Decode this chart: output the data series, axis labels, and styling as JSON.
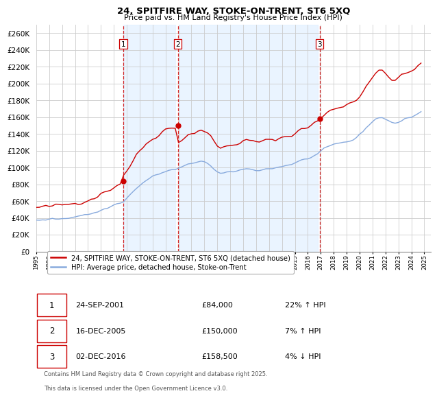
{
  "title": "24, SPITFIRE WAY, STOKE-ON-TRENT, ST6 5XQ",
  "subtitle": "Price paid vs. HM Land Registry's House Price Index (HPI)",
  "ylim": [
    0,
    270000
  ],
  "yticks": [
    0,
    20000,
    40000,
    60000,
    80000,
    100000,
    120000,
    140000,
    160000,
    180000,
    200000,
    220000,
    240000,
    260000
  ],
  "xlim_start": 1995.0,
  "xlim_end": 2025.5,
  "sale_color": "#cc0000",
  "hpi_color": "#88aadd",
  "shade_color": "#ddeeff",
  "vline_color": "#cc0000",
  "grid_color": "#cccccc",
  "bg_color": "#ffffff",
  "legend_label_sale": "24, SPITFIRE WAY, STOKE-ON-TRENT, ST6 5XQ (detached house)",
  "legend_label_hpi": "HPI: Average price, detached house, Stoke-on-Trent",
  "sale_dates": [
    2001.73,
    2005.96,
    2016.92
  ],
  "sale_prices": [
    84000,
    150000,
    158500
  ],
  "sale_labels": [
    "1",
    "2",
    "3"
  ],
  "footnote1": "Contains HM Land Registry data © Crown copyright and database right 2025.",
  "footnote2": "This data is licensed under the Open Government Licence v3.0.",
  "table_rows": [
    {
      "label": "1",
      "date": "24-SEP-2001",
      "price": "£84,000",
      "hpi": "22% ↑ HPI"
    },
    {
      "label": "2",
      "date": "16-DEC-2005",
      "price": "£150,000",
      "hpi": "7% ↑ HPI"
    },
    {
      "label": "3",
      "date": "02-DEC-2016",
      "price": "£158,500",
      "hpi": "4% ↓ HPI"
    }
  ],
  "hpi_index": [
    52.0,
    52.4,
    52.7,
    53.1,
    53.5,
    54.0,
    54.5,
    55.0,
    55.6,
    56.3,
    57.1,
    57.9,
    58.8,
    59.7,
    60.5,
    61.3,
    62.2,
    63.5,
    65.0,
    66.8,
    68.8,
    70.9,
    73.1,
    75.4,
    77.7,
    80.0,
    82.3,
    84.6,
    89.5,
    94.8,
    100.3,
    105.7,
    110.8,
    115.2,
    119.0,
    122.4,
    125.3,
    128.0,
    130.4,
    132.5,
    134.3,
    135.5,
    136.5,
    137.3,
    139.1,
    141.0,
    143.0,
    145.2,
    147.5,
    149.8,
    151.7,
    152.8,
    151.0,
    147.5,
    142.8,
    137.0,
    132.8,
    130.0,
    130.5,
    131.2,
    132.8,
    134.5,
    136.0,
    137.0,
    137.8,
    138.2,
    137.9,
    137.5,
    137.0,
    137.4,
    137.8,
    138.3,
    138.9,
    139.8,
    140.7,
    141.7,
    143.0,
    144.3,
    145.5,
    146.8,
    148.5,
    150.3,
    152.3,
    154.4,
    156.5,
    158.7,
    160.8,
    163.0,
    166.8,
    170.0,
    173.5,
    176.2,
    178.8,
    180.6,
    182.0,
    183.2,
    184.5,
    185.8,
    187.5,
    190.5,
    195.8,
    201.5,
    208.2,
    213.8,
    218.5,
    222.0,
    224.5,
    225.8,
    222.8,
    219.5,
    217.0,
    215.5,
    216.8,
    219.0,
    221.5,
    224.0,
    226.5,
    229.0,
    231.5,
    234.0
  ],
  "hpi_data_x": [
    1995.0,
    1995.25,
    1995.5,
    1995.75,
    1996.0,
    1996.25,
    1996.5,
    1996.75,
    1997.0,
    1997.25,
    1997.5,
    1997.75,
    1998.0,
    1998.25,
    1998.5,
    1998.75,
    1999.0,
    1999.25,
    1999.5,
    1999.75,
    2000.0,
    2000.25,
    2000.5,
    2000.75,
    2001.0,
    2001.25,
    2001.5,
    2001.75,
    2002.0,
    2002.25,
    2002.5,
    2002.75,
    2003.0,
    2003.25,
    2003.5,
    2003.75,
    2004.0,
    2004.25,
    2004.5,
    2004.75,
    2005.0,
    2005.25,
    2005.5,
    2005.75,
    2006.0,
    2006.25,
    2006.5,
    2006.75,
    2007.0,
    2007.25,
    2007.5,
    2007.75,
    2008.0,
    2008.25,
    2008.5,
    2008.75,
    2009.0,
    2009.25,
    2009.5,
    2009.75,
    2010.0,
    2010.25,
    2010.5,
    2010.75,
    2011.0,
    2011.25,
    2011.5,
    2011.75,
    2012.0,
    2012.25,
    2012.5,
    2012.75,
    2013.0,
    2013.25,
    2013.5,
    2013.75,
    2014.0,
    2014.25,
    2014.5,
    2014.75,
    2015.0,
    2015.25,
    2015.5,
    2015.75,
    2016.0,
    2016.25,
    2016.5,
    2016.75,
    2017.0,
    2017.25,
    2017.5,
    2017.75,
    2018.0,
    2018.25,
    2018.5,
    2018.75,
    2019.0,
    2019.25,
    2019.5,
    2019.75,
    2020.0,
    2020.25,
    2020.5,
    2020.75,
    2021.0,
    2021.25,
    2021.5,
    2021.75,
    2022.0,
    2022.25,
    2022.5,
    2022.75,
    2023.0,
    2023.25,
    2023.5,
    2023.75,
    2024.0,
    2024.25,
    2024.5,
    2024.75
  ]
}
